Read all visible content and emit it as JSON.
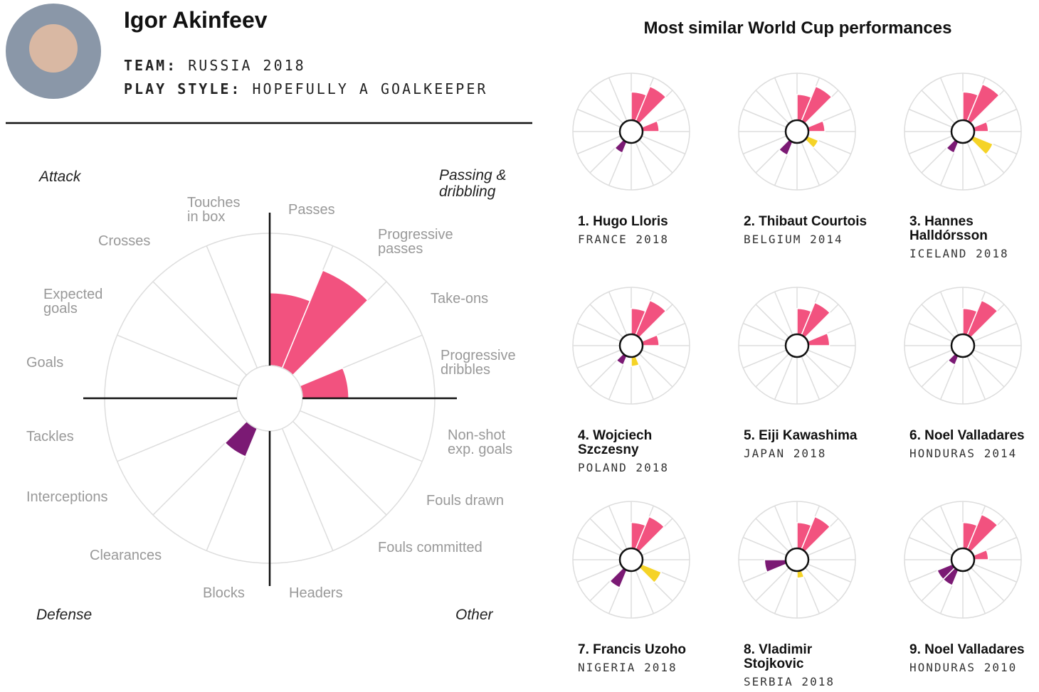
{
  "player": {
    "name": "Igor Akinfeev",
    "team_label": "TEAM:",
    "team": "RUSSIA 2018",
    "style_label": "PLAY STYLE:",
    "style": "HOPEFULLY A GOALKEEPER"
  },
  "similar_heading": "Most similar World Cup performances",
  "chart_data": [
    {
      "type": "polar",
      "categories": [
        "Passes",
        "Progressive passes",
        "Take-ons",
        "Progressive dribbles",
        "Non-shot exp. goals",
        "Fouls drawn",
        "Fouls committed",
        "Headers",
        "Blocks",
        "Clearances",
        "Interceptions",
        "Tackles",
        "Goals",
        "Expected goals",
        "Crosses",
        "Touches in box"
      ],
      "colors": [
        "#f2527f",
        "#f2527f",
        "#f2527f",
        "#f2527f",
        "#f5d327",
        "#f5d327",
        "#f5d327",
        "#f5d327",
        "#7b1a74",
        "#7b1a74",
        "#7b1a74",
        "#7b1a74",
        "#ffffff",
        "#ffffff",
        "#ffffff",
        "#ffffff"
      ],
      "values": [
        55,
        80,
        0,
        35,
        0,
        0,
        0,
        0,
        0,
        23,
        0,
        0,
        0,
        0,
        0,
        0
      ],
      "rlim": [
        0,
        100
      ],
      "group_labels": [
        "Attack",
        "Passing & dribbling",
        "Defense",
        "Other"
      ]
    },
    {
      "type": "polar",
      "title": [
        "1. Hugo Lloris"
      ],
      "subtitle": "FRANCE 2018",
      "rlim": [
        0,
        100
      ],
      "values": [
        60,
        80,
        0,
        35,
        0,
        0,
        0,
        0,
        0,
        25,
        0,
        0,
        0,
        0,
        0,
        0
      ]
    },
    {
      "type": "polar",
      "title": [
        "2. Thibaut Courtois"
      ],
      "subtitle": "BELGIUM 2014",
      "rlim": [
        0,
        100
      ],
      "values": [
        55,
        80,
        0,
        35,
        0,
        25,
        0,
        0,
        0,
        30,
        0,
        0,
        0,
        0,
        0,
        0
      ]
    },
    {
      "type": "polar",
      "title": [
        "3. Hannes",
        "Halldórsson"
      ],
      "subtitle": "ICELAND 2018",
      "rlim": [
        0,
        100
      ],
      "values": [
        60,
        85,
        0,
        30,
        0,
        45,
        0,
        0,
        0,
        25,
        0,
        0,
        0,
        0,
        0,
        0
      ]
    },
    {
      "type": "polar",
      "title": [
        "4. Wojciech",
        "Szczesny"
      ],
      "subtitle": "POLAND 2018",
      "rlim": [
        0,
        100
      ],
      "values": [
        55,
        80,
        0,
        35,
        0,
        0,
        0,
        20,
        0,
        20,
        0,
        0,
        0,
        0,
        0,
        0
      ]
    },
    {
      "type": "polar",
      "title": [
        "5. Eiji Kawashima"
      ],
      "subtitle": "JAPAN 2018",
      "rlim": [
        0,
        100
      ],
      "values": [
        55,
        75,
        0,
        45,
        0,
        0,
        0,
        0,
        0,
        0,
        0,
        0,
        0,
        0,
        0,
        0
      ]
    },
    {
      "type": "polar",
      "title": [
        "6. Noel Valladares"
      ],
      "subtitle": "HONDURAS 2014",
      "rlim": [
        0,
        100
      ],
      "values": [
        55,
        80,
        0,
        0,
        0,
        0,
        0,
        0,
        0,
        20,
        0,
        0,
        0,
        0,
        0,
        0
      ]
    },
    {
      "type": "polar",
      "title": [
        "7. Francis Uzoho"
      ],
      "subtitle": "NIGERIA 2018",
      "rlim": [
        0,
        100
      ],
      "values": [
        55,
        75,
        0,
        0,
        0,
        45,
        0,
        0,
        0,
        40,
        0,
        0,
        0,
        0,
        0,
        0
      ]
    },
    {
      "type": "polar",
      "title": [
        "8. Vladimir",
        "Stojkovic"
      ],
      "subtitle": "SERBIA 2018",
      "rlim": [
        0,
        100
      ],
      "values": [
        55,
        75,
        0,
        0,
        0,
        0,
        0,
        15,
        0,
        0,
        0,
        45,
        0,
        0,
        0,
        0
      ]
    },
    {
      "type": "polar",
      "title": [
        "9. Noel Valladares"
      ],
      "subtitle": "HONDURAS 2010",
      "rlim": [
        0,
        100
      ],
      "values": [
        55,
        80,
        0,
        30,
        0,
        0,
        0,
        0,
        0,
        35,
        35,
        0,
        0,
        0,
        0,
        0
      ]
    }
  ]
}
